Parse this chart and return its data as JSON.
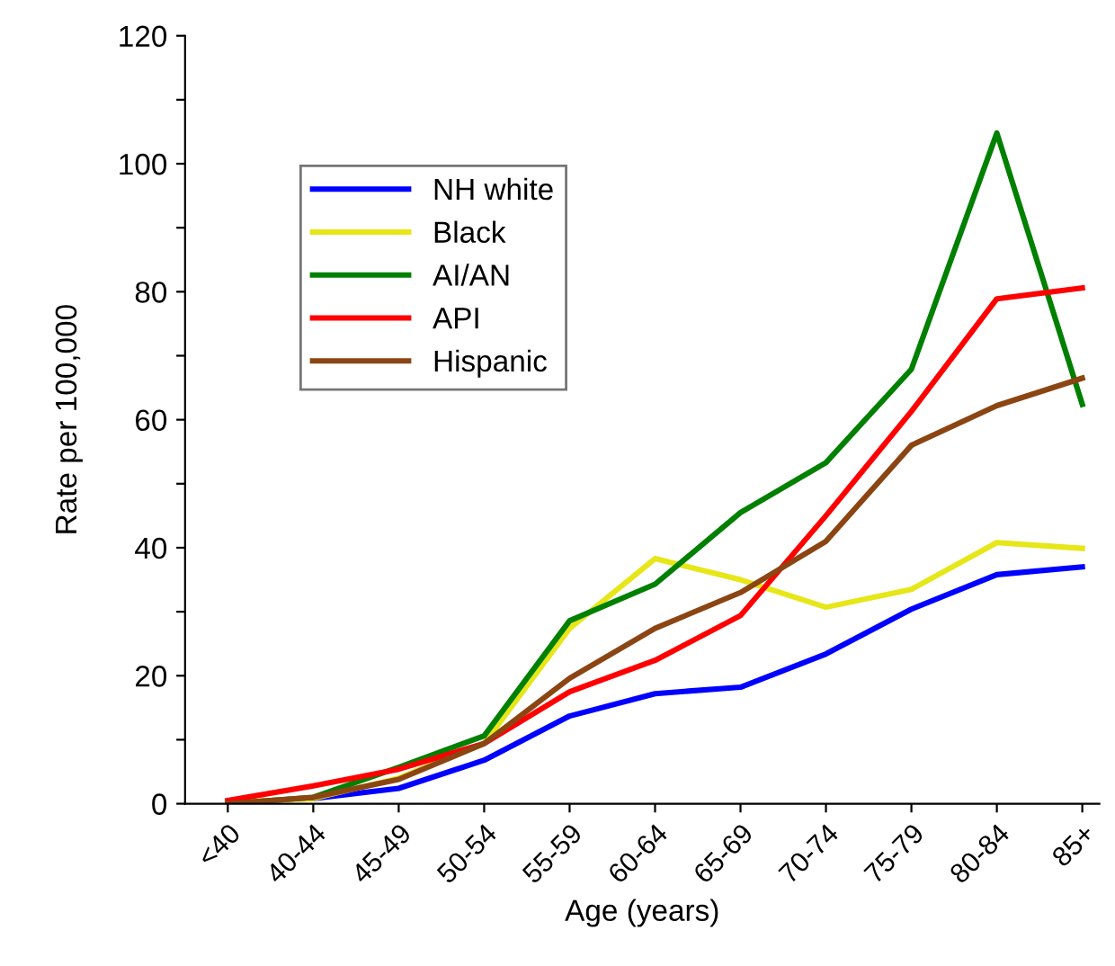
{
  "chart_data": {
    "type": "line",
    "xlabel": "Age (years)",
    "ylabel": "Rate per 100,000",
    "categories": [
      "<40",
      "40-44",
      "45-49",
      "50-54",
      "55-59",
      "60-64",
      "65-69",
      "70-74",
      "75-79",
      "80-84",
      "85+"
    ],
    "series": [
      {
        "name": "NH white",
        "color": "#0000ff",
        "values": [
          null,
          0.8,
          2.4,
          6.8,
          13.7,
          17.2,
          18.2,
          23.4,
          30.4,
          35.8,
          37.0
        ]
      },
      {
        "name": "Black",
        "color": "#e6e619",
        "values": [
          0.2,
          0.8,
          4.0,
          9.4,
          27.4,
          38.3,
          35.0,
          30.7,
          33.5,
          40.8,
          39.9
        ]
      },
      {
        "name": "AI/AN",
        "color": "#008000",
        "values": [
          0.0,
          1.0,
          5.7,
          10.6,
          28.6,
          34.3,
          45.5,
          53.3,
          67.9,
          104.8,
          62.4
        ]
      },
      {
        "name": "API",
        "color": "#ff0000",
        "values": [
          0.5,
          2.8,
          5.4,
          9.4,
          17.5,
          22.4,
          29.4,
          45.0,
          61.3,
          78.9,
          80.6
        ]
      },
      {
        "name": "Hispanic",
        "color": "#8b4513",
        "values": [
          0.0,
          1.0,
          3.8,
          9.4,
          19.6,
          27.4,
          33.0,
          41.0,
          56.0,
          62.2,
          66.5
        ]
      }
    ],
    "ylim": [
      0,
      120
    ],
    "yticks": [
      0,
      {
        "value": 10,
        "label": null
      },
      20,
      {
        "value": 30,
        "label": null
      },
      40,
      {
        "value": 50,
        "label": null
      },
      60,
      {
        "value": 70,
        "label": null
      },
      80,
      {
        "value": 90,
        "label": null
      },
      100,
      {
        "value": 110,
        "label": null
      },
      120
    ],
    "legend": "top left",
    "grid": false,
    "marker": "none",
    "line_style": "solid"
  }
}
